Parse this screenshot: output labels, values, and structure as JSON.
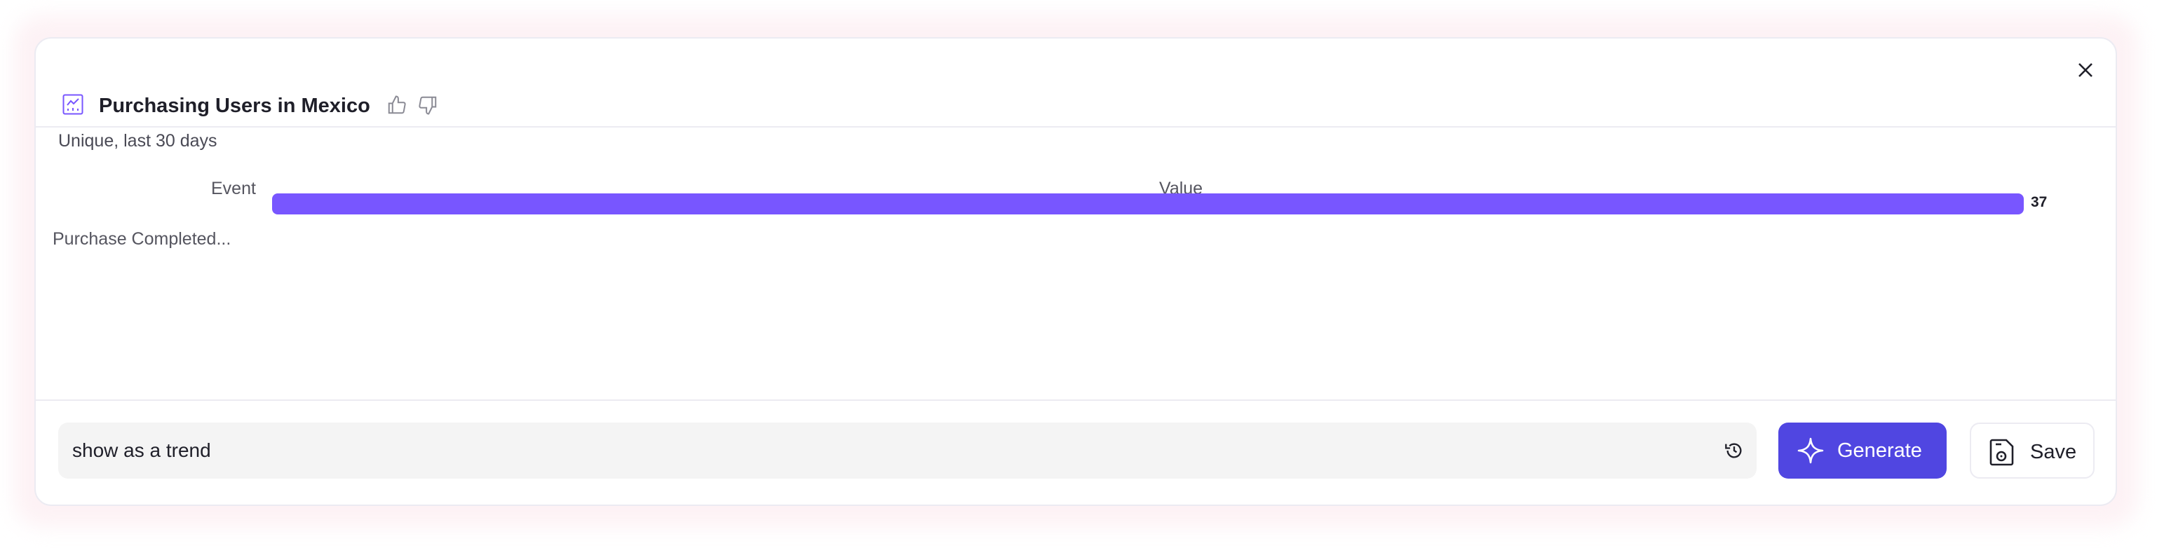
{
  "header": {
    "title": "Purchasing Users in Mexico",
    "subtitle": "Unique, last 30 days",
    "chart_icon": "line-chart-icon",
    "thumbs_up_icon": "thumbs-up-icon",
    "thumbs_down_icon": "thumbs-down-icon",
    "close_icon": "close-icon"
  },
  "chart_data": {
    "type": "bar",
    "orientation": "horizontal",
    "column_headers": [
      "Event",
      "Value"
    ],
    "categories": [
      "Purchase Completed..."
    ],
    "values": [
      37
    ],
    "data_labels": [
      "37"
    ],
    "bar_color": "#7856ff"
  },
  "prompt": {
    "value": "show as a trend",
    "history_icon": "history-icon"
  },
  "buttons": {
    "generate": "Generate",
    "save": "Save"
  },
  "colors": {
    "accent": "#5046e1",
    "bar": "#7856ff"
  }
}
